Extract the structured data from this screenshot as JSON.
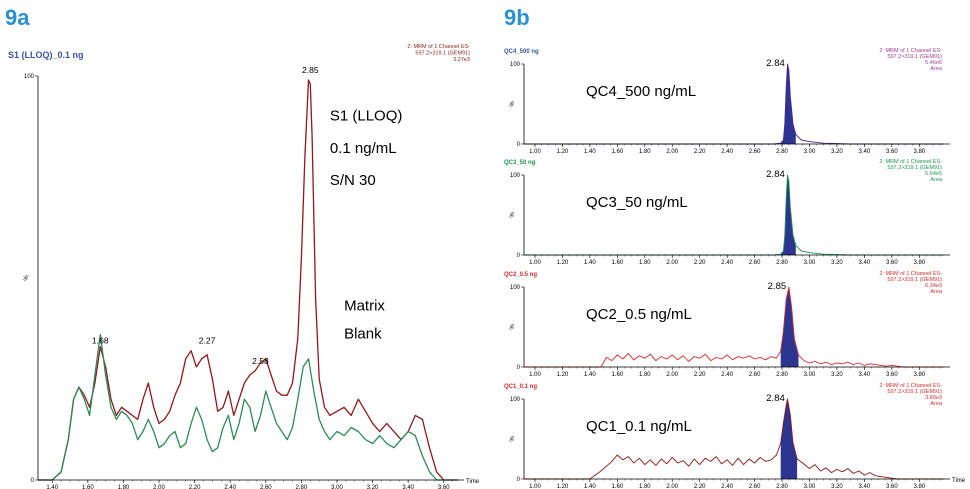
{
  "figure_labels": {
    "a": "9a",
    "b": "9b"
  },
  "chart_data": [
    {
      "type": "line",
      "panel": "9a",
      "title": "S1 (LLOQ)_0.1 ng",
      "header_right": [
        "2: MRM of 1 Channel ES-",
        "597.2>319.1 (GEM91)",
        "3.27e3"
      ],
      "xlabel": "Time",
      "ylabel": "%",
      "xlim": [
        1.32,
        3.68
      ],
      "ylim": [
        0,
        100
      ],
      "x_ticks": [
        1.4,
        1.6,
        1.8,
        2.0,
        2.2,
        2.4,
        2.6,
        2.8,
        3.0,
        3.2,
        3.4,
        3.6
      ],
      "x_tick_labels": [
        "1.40",
        "1.60",
        "1.80",
        "2.00",
        "2.20",
        "2.40",
        "2.60",
        "2.80",
        "3.00",
        "3.20",
        "3.40",
        "3.60"
      ],
      "y_ticks": [
        0,
        100
      ],
      "y_tick_labels": [
        "0",
        "100"
      ],
      "annotations": [
        {
          "text": "S1 (LLOQ)",
          "x": 2.96,
          "y": 89
        },
        {
          "text": "0.1 ng/mL",
          "x": 2.96,
          "y": 81
        },
        {
          "text": "S/N 30",
          "x": 2.96,
          "y": 73
        },
        {
          "text": "Matrix",
          "x": 3.04,
          "y": 42
        },
        {
          "text": "Blank",
          "x": 3.04,
          "y": 35
        }
      ],
      "peak_labels": [
        {
          "text": "1.68",
          "x": 1.67,
          "y": 33
        },
        {
          "text": "2.27",
          "x": 2.27,
          "y": 33
        },
        {
          "text": "2.58",
          "x": 2.57,
          "y": 28
        },
        {
          "text": "2.85",
          "x": 2.85,
          "y": 100
        }
      ],
      "series": [
        {
          "color": "#8b1a1a",
          "x": [
            1.32,
            1.4,
            1.45,
            1.49,
            1.52,
            1.55,
            1.58,
            1.61,
            1.64,
            1.67,
            1.7,
            1.73,
            1.76,
            1.79,
            1.82,
            1.85,
            1.88,
            1.91,
            1.94,
            1.97,
            2.0,
            2.03,
            2.06,
            2.09,
            2.12,
            2.15,
            2.18,
            2.21,
            2.24,
            2.27,
            2.3,
            2.33,
            2.36,
            2.39,
            2.42,
            2.45,
            2.48,
            2.51,
            2.54,
            2.57,
            2.6,
            2.63,
            2.66,
            2.69,
            2.72,
            2.75,
            2.78,
            2.8,
            2.82,
            2.84,
            2.85,
            2.86,
            2.88,
            2.9,
            2.93,
            2.96,
            3.0,
            3.04,
            3.08,
            3.12,
            3.16,
            3.2,
            3.24,
            3.28,
            3.32,
            3.36,
            3.4,
            3.44,
            3.48,
            3.52,
            3.56,
            3.6,
            3.68
          ],
          "y": [
            0,
            0,
            2,
            10,
            20,
            23,
            21,
            18,
            24,
            33,
            28,
            20,
            16,
            18,
            17,
            16,
            15,
            20,
            24,
            18,
            14,
            15,
            17,
            21,
            24,
            30,
            32,
            28,
            30,
            31,
            25,
            17,
            18,
            22,
            16,
            20,
            24,
            26,
            27,
            29,
            30,
            26,
            22,
            21,
            21,
            24,
            35,
            55,
            80,
            99,
            98,
            85,
            45,
            25,
            18,
            16,
            17,
            18,
            16,
            20,
            17,
            14,
            12,
            14,
            12,
            10,
            12,
            16,
            15,
            8,
            2,
            0,
            0
          ]
        },
        {
          "color": "#2e8b57",
          "x": [
            1.32,
            1.4,
            1.45,
            1.49,
            1.52,
            1.55,
            1.58,
            1.61,
            1.64,
            1.67,
            1.7,
            1.73,
            1.76,
            1.79,
            1.82,
            1.85,
            1.88,
            1.91,
            1.94,
            1.97,
            2.0,
            2.03,
            2.06,
            2.09,
            2.12,
            2.15,
            2.18,
            2.21,
            2.24,
            2.27,
            2.3,
            2.33,
            2.36,
            2.39,
            2.42,
            2.45,
            2.48,
            2.51,
            2.54,
            2.57,
            2.6,
            2.63,
            2.66,
            2.69,
            2.72,
            2.75,
            2.78,
            2.81,
            2.84,
            2.87,
            2.9,
            2.93,
            2.96,
            3.0,
            3.04,
            3.08,
            3.12,
            3.16,
            3.2,
            3.24,
            3.28,
            3.32,
            3.36,
            3.4,
            3.44,
            3.48,
            3.52,
            3.56,
            3.6,
            3.68
          ],
          "y": [
            0,
            0,
            2,
            10,
            20,
            23,
            20,
            16,
            26,
            36,
            26,
            18,
            15,
            17,
            16,
            14,
            10,
            12,
            15,
            12,
            8,
            9,
            11,
            12,
            8,
            9,
            14,
            18,
            15,
            10,
            7,
            8,
            13,
            16,
            10,
            14,
            20,
            18,
            12,
            16,
            22,
            18,
            14,
            12,
            10,
            13,
            20,
            28,
            30,
            22,
            15,
            12,
            10,
            12,
            11,
            13,
            12,
            10,
            9,
            11,
            9,
            8,
            10,
            12,
            11,
            6,
            2,
            0,
            0,
            0
          ]
        }
      ]
    },
    {
      "type": "line",
      "panel": "9b",
      "title": "QC4_500 ng",
      "title_color": "#3a55a4",
      "header_right": [
        "2: MRM of 1 Channel ES-",
        "597.2>319.1 (GEM91)",
        "5.46e6",
        "Area"
      ],
      "header_color": "#a03c96",
      "annotation": "QC4_500 ng/mL",
      "peak_label": "2.84",
      "ylabel": "%",
      "xlim": [
        0.92,
        3.98
      ],
      "ylim": [
        0,
        100
      ],
      "x_ticks": [
        1.0,
        1.2,
        1.4,
        1.6,
        1.8,
        2.0,
        2.2,
        2.4,
        2.6,
        2.8,
        3.0,
        3.2,
        3.4,
        3.6,
        3.8
      ],
      "x_tick_labels": [
        "1.00",
        "1.20",
        "1.40",
        "1.60",
        "1.80",
        "2.00",
        "2.20",
        "2.40",
        "2.60",
        "2.80",
        "3.00",
        "3.20",
        "3.40",
        "3.60",
        "3.80"
      ],
      "y_ticks": [
        0,
        100
      ],
      "y_tick_labels": [
        "0",
        "100"
      ],
      "series": [
        {
          "color": "#4b2a8c",
          "fill": "#2c3590",
          "x": [
            0.92,
            2.74,
            2.79,
            2.81,
            2.82,
            2.83,
            2.84,
            2.85,
            2.86,
            2.88,
            2.9,
            2.94,
            3.0,
            3.1,
            3.3,
            3.98
          ],
          "y": [
            0,
            0,
            1,
            5,
            25,
            70,
            100,
            92,
            60,
            25,
            12,
            5,
            3,
            1,
            0,
            0
          ]
        }
      ]
    },
    {
      "type": "line",
      "panel": "9b",
      "title": "QC3_50 ng",
      "title_color": "#1e9650",
      "header_right": [
        "2: MRM of 1 Channel ES-",
        "597.2>319.1 (GEM91)",
        "5.54e5",
        "Area"
      ],
      "header_color": "#1e9650",
      "annotation": "QC3_50 ng/mL",
      "peak_label": "2.84",
      "ylabel": "%",
      "xlim": [
        0.92,
        3.98
      ],
      "ylim": [
        0,
        100
      ],
      "x_ticks": [
        1.0,
        1.2,
        1.4,
        1.6,
        1.8,
        2.0,
        2.2,
        2.4,
        2.6,
        2.8,
        3.0,
        3.2,
        3.4,
        3.6,
        3.8
      ],
      "x_tick_labels": [
        "1.00",
        "1.20",
        "1.40",
        "1.60",
        "1.80",
        "2.00",
        "2.20",
        "2.40",
        "2.60",
        "2.80",
        "3.00",
        "3.20",
        "3.40",
        "3.60",
        "3.80"
      ],
      "y_ticks": [
        0,
        100
      ],
      "y_tick_labels": [
        "0",
        "100"
      ],
      "series": [
        {
          "color": "#1e9650",
          "fill": "#2c3590",
          "x": [
            0.92,
            2.74,
            2.79,
            2.81,
            2.82,
            2.83,
            2.84,
            2.85,
            2.86,
            2.88,
            2.9,
            2.94,
            3.0,
            3.1,
            3.3,
            3.98
          ],
          "y": [
            0,
            0,
            1,
            5,
            25,
            70,
            100,
            92,
            60,
            25,
            12,
            5,
            3,
            1,
            0,
            0
          ]
        }
      ]
    },
    {
      "type": "line",
      "panel": "9b",
      "title": "QC2_0.5 ng",
      "title_color": "#d62d2d",
      "header_right": [
        "2: MRM of 1 Channel ES-",
        "597.2>319.1 (GEM91)",
        "6.34e3",
        "Area"
      ],
      "header_color": "#d62d2d",
      "annotation": "QC2_0.5 ng/mL",
      "peak_label": "2.85",
      "ylabel": "%",
      "xlim": [
        0.92,
        3.98
      ],
      "ylim": [
        0,
        100
      ],
      "x_ticks": [
        1.0,
        1.2,
        1.4,
        1.6,
        1.8,
        2.0,
        2.2,
        2.4,
        2.6,
        2.8,
        3.0,
        3.2,
        3.4,
        3.6,
        3.8
      ],
      "x_tick_labels": [
        "1.00",
        "1.20",
        "1.40",
        "1.60",
        "1.80",
        "2.00",
        "2.20",
        "2.40",
        "2.60",
        "2.80",
        "3.00",
        "3.20",
        "3.40",
        "3.60",
        "3.80"
      ],
      "y_ticks": [
        0,
        100
      ],
      "y_tick_labels": [
        "0",
        "100"
      ],
      "series": [
        {
          "color": "#d62d2d",
          "fill": "#2c3590",
          "x": [
            0.92,
            1.48,
            1.52,
            1.56,
            1.6,
            1.64,
            1.68,
            1.72,
            1.76,
            1.8,
            1.84,
            1.88,
            1.92,
            1.96,
            2.0,
            2.04,
            2.08,
            2.12,
            2.16,
            2.2,
            2.24,
            2.28,
            2.32,
            2.36,
            2.4,
            2.44,
            2.48,
            2.52,
            2.56,
            2.6,
            2.64,
            2.68,
            2.72,
            2.76,
            2.79,
            2.81,
            2.83,
            2.85,
            2.87,
            2.89,
            2.92,
            2.96,
            3.0,
            3.04,
            3.08,
            3.12,
            3.16,
            3.2,
            3.24,
            3.28,
            3.32,
            3.36,
            3.4,
            3.44,
            3.48,
            3.52,
            3.56,
            3.6,
            3.64,
            3.68,
            3.98
          ],
          "y": [
            0,
            0,
            12,
            8,
            15,
            10,
            17,
            9,
            14,
            11,
            16,
            8,
            13,
            10,
            15,
            9,
            14,
            7,
            13,
            11,
            16,
            8,
            12,
            10,
            15,
            9,
            13,
            11,
            14,
            10,
            12,
            9,
            13,
            11,
            20,
            45,
            85,
            100,
            75,
            35,
            15,
            8,
            5,
            7,
            4,
            6,
            3,
            5,
            4,
            6,
            3,
            5,
            2,
            4,
            3,
            2,
            1,
            2,
            1,
            0,
            0
          ]
        }
      ]
    },
    {
      "type": "line",
      "panel": "9b",
      "title": "QC1_0.1 ng",
      "title_color": "#d62d2d",
      "header_right": [
        "2: MRM of 1 Channel ES-",
        "597.2>319.1 (GEM91)",
        "3.80e3",
        "Area"
      ],
      "header_color": "#d62d2d",
      "annotation": "QC1_0.1 ng/mL",
      "peak_label": "2.84",
      "xlabel": "Time",
      "ylabel": "%",
      "xlim": [
        0.92,
        3.98
      ],
      "ylim": [
        0,
        100
      ],
      "x_ticks": [
        1.0,
        1.2,
        1.4,
        1.6,
        1.8,
        2.0,
        2.2,
        2.4,
        2.6,
        2.8,
        3.0,
        3.2,
        3.4,
        3.6,
        3.8
      ],
      "x_tick_labels": [
        "1.00",
        "1.20",
        "1.40",
        "1.60",
        "1.80",
        "2.00",
        "2.20",
        "2.40",
        "2.60",
        "2.80",
        "3.00",
        "3.20",
        "3.40",
        "3.60",
        "3.80"
      ],
      "y_ticks": [
        0,
        100
      ],
      "y_tick_labels": [
        "0",
        "100"
      ],
      "series": [
        {
          "color": "#8b1a1a",
          "fill": "#2c3590",
          "x": [
            0.92,
            1.4,
            1.44,
            1.48,
            1.52,
            1.56,
            1.6,
            1.64,
            1.68,
            1.72,
            1.76,
            1.8,
            1.84,
            1.88,
            1.92,
            1.96,
            2.0,
            2.04,
            2.08,
            2.12,
            2.16,
            2.2,
            2.24,
            2.28,
            2.32,
            2.36,
            2.4,
            2.44,
            2.48,
            2.52,
            2.56,
            2.6,
            2.64,
            2.68,
            2.72,
            2.76,
            2.79,
            2.81,
            2.83,
            2.84,
            2.86,
            2.88,
            2.91,
            2.95,
            3.0,
            3.04,
            3.08,
            3.12,
            3.16,
            3.2,
            3.24,
            3.28,
            3.32,
            3.36,
            3.4,
            3.44,
            3.48,
            3.52,
            3.56,
            3.6,
            3.64,
            3.7,
            3.98
          ],
          "y": [
            0,
            0,
            5,
            10,
            16,
            22,
            30,
            24,
            28,
            20,
            26,
            18,
            24,
            17,
            25,
            19,
            27,
            20,
            23,
            16,
            25,
            18,
            26,
            22,
            28,
            19,
            24,
            17,
            26,
            18,
            25,
            20,
            27,
            22,
            24,
            30,
            45,
            70,
            92,
            100,
            80,
            45,
            25,
            20,
            13,
            18,
            10,
            14,
            8,
            12,
            9,
            13,
            7,
            10,
            5,
            8,
            4,
            3,
            2,
            1,
            0,
            0,
            0
          ]
        }
      ]
    }
  ]
}
